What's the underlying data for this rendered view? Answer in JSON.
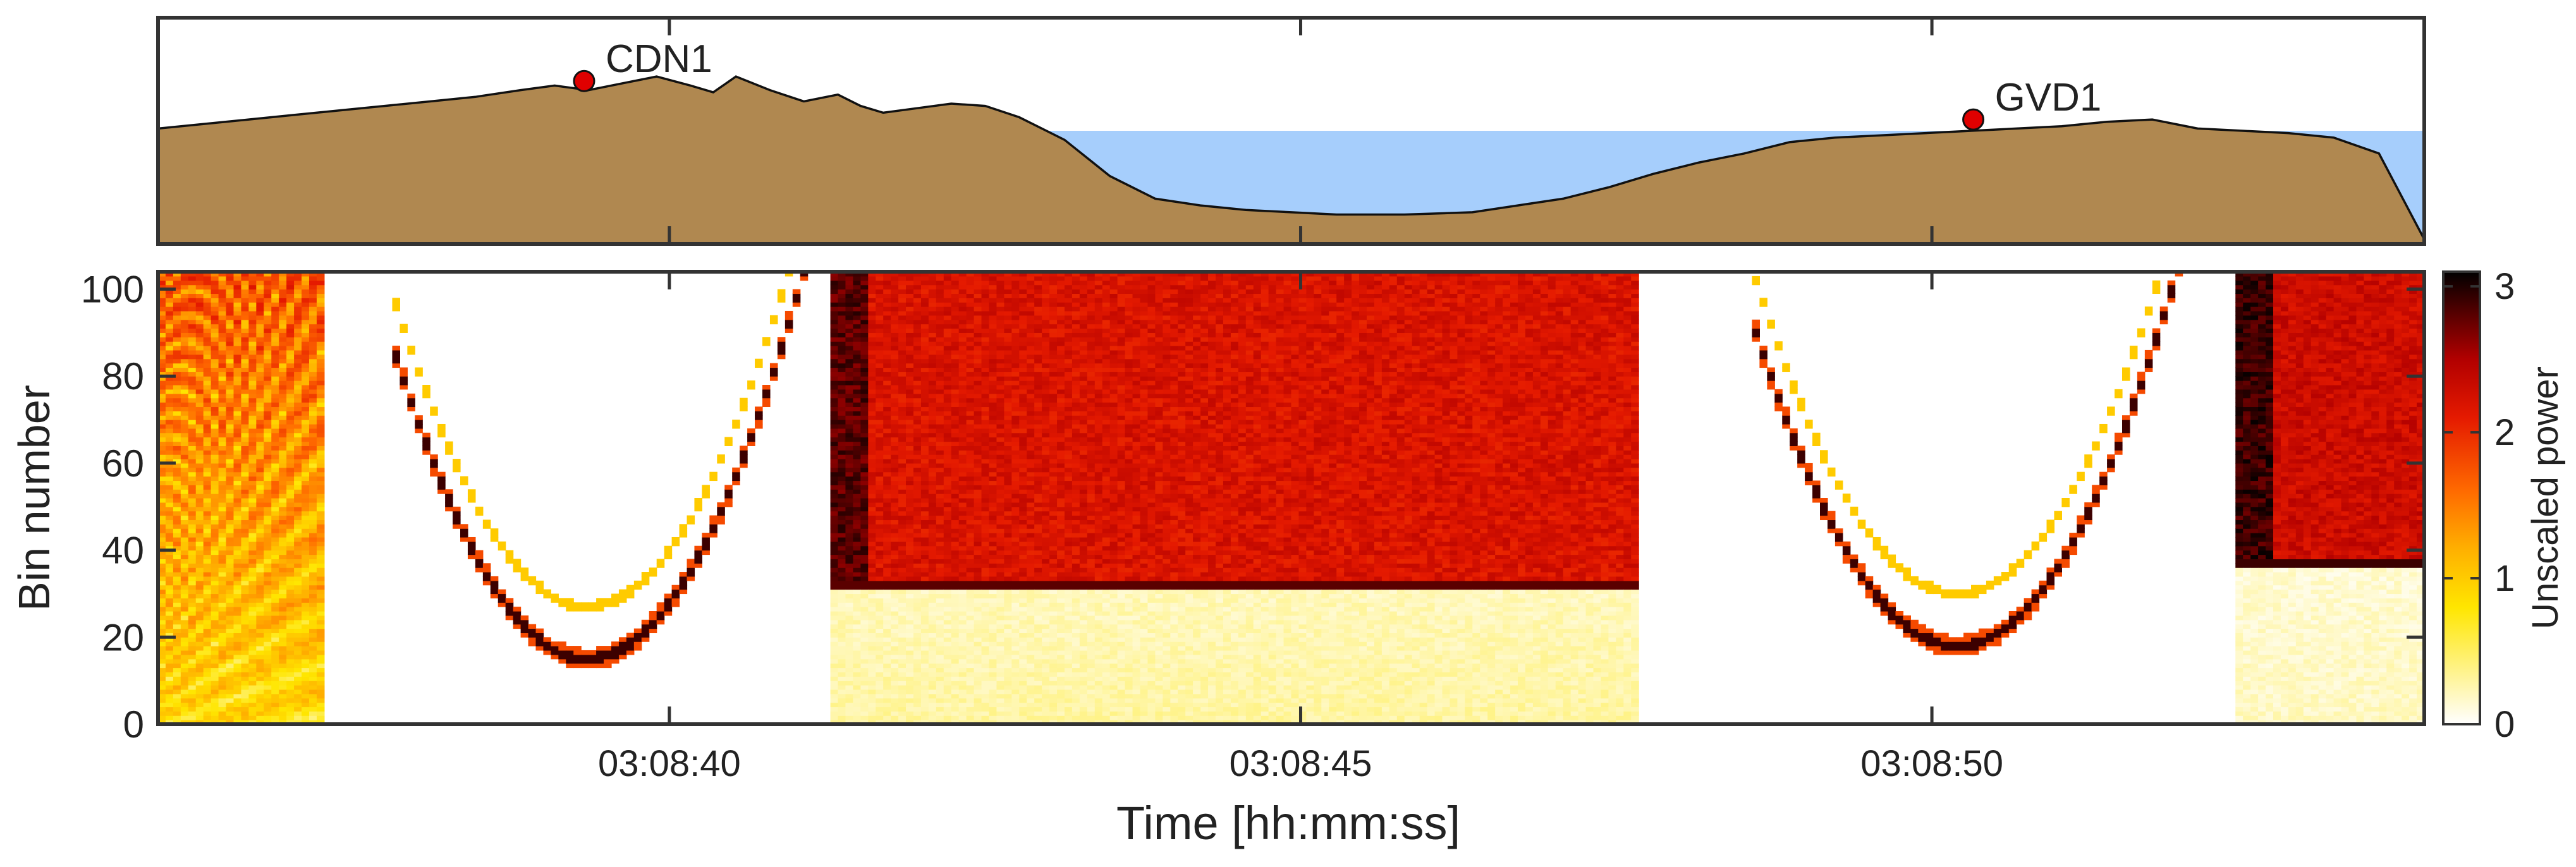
{
  "chart_data": [
    {
      "type": "area",
      "panel": "terrain-profile",
      "title": "",
      "xlabel": "",
      "ylabel": "",
      "x_range": [
        0,
        100
      ],
      "y_range": [
        0,
        100
      ],
      "colors": {
        "ground": "#b08850",
        "water": "#a6cefc",
        "outline": "#111111",
        "marker": "#e00000"
      },
      "water_level": 50,
      "ground_profile": {
        "x": [
          0,
          2,
          4,
          6,
          8,
          10,
          12,
          14,
          16,
          17.5,
          19,
          20.5,
          22,
          23.5,
          24.5,
          25.5,
          27,
          28.5,
          30,
          31,
          32,
          33.5,
          35,
          36.5,
          38,
          40,
          42,
          44,
          46,
          48,
          50,
          52,
          55,
          58,
          60,
          62,
          64,
          66,
          68,
          70,
          72,
          74,
          76,
          78,
          80,
          82,
          84,
          86,
          88,
          90,
          92,
          94,
          96,
          98,
          100
        ],
        "y": [
          51,
          53,
          55,
          57,
          59,
          61,
          63,
          65,
          68,
          70,
          68,
          71,
          74,
          70,
          67,
          74,
          68,
          63,
          66,
          61,
          58,
          60,
          62,
          61,
          56,
          46,
          30,
          20,
          17,
          15,
          14,
          13,
          13,
          14,
          17,
          20,
          25,
          31,
          36,
          40,
          45,
          47,
          48,
          49,
          50,
          51,
          52,
          54,
          55,
          51,
          50,
          49,
          47,
          40,
          2
        ]
      },
      "stations": [
        {
          "label": "CDN1",
          "x": 18.8,
          "y": 72
        },
        {
          "label": "GVD1",
          "x": 80.1,
          "y": 55
        }
      ]
    },
    {
      "type": "heatmap",
      "panel": "spectrogram",
      "title": "",
      "xlabel": "Time [hh:mm:ss]",
      "ylabel": "Bin number",
      "x_range_seconds": [
        35.95,
        53.9
      ],
      "xticks": [
        {
          "value": 40,
          "label": "03:08:40"
        },
        {
          "value": 45,
          "label": "03:08:45"
        },
        {
          "value": 50,
          "label": "03:08:50"
        }
      ],
      "ylim": [
        0,
        104
      ],
      "yticks": [
        0,
        20,
        40,
        60,
        80,
        100
      ],
      "ytick_labels": [
        "0",
        "20",
        "40",
        "60",
        "80",
        "100"
      ],
      "colorbar": {
        "label": "Unscaled power",
        "range": [
          0,
          3.1
        ],
        "ticks": [
          0,
          1,
          2,
          3
        ],
        "tick_labels": [
          "0",
          "1",
          "2",
          "3"
        ],
        "colormap_stops": [
          {
            "value": 0.0,
            "color": "#ffffff"
          },
          {
            "value": 0.2,
            "color": "#fff8c0"
          },
          {
            "value": 0.8,
            "color": "#ffe600"
          },
          {
            "value": 1.2,
            "color": "#ffb000"
          },
          {
            "value": 1.6,
            "color": "#ff6a00"
          },
          {
            "value": 2.1,
            "color": "#e51a00"
          },
          {
            "value": 2.5,
            "color": "#b20000"
          },
          {
            "value": 2.8,
            "color": "#5a0000"
          },
          {
            "value": 3.1,
            "color": "#000000"
          }
        ]
      },
      "regions": [
        {
          "name": "early-mixed",
          "t": [
            35.95,
            37.25
          ],
          "pattern": "fan",
          "level": 1.7
        },
        {
          "name": "first-arc",
          "t": [
            37.8,
            41.15
          ],
          "pattern": "parabola",
          "vertex_time": 39.35,
          "vertex_bin": 15,
          "level": 2.9
        },
        {
          "name": "first-block",
          "t": [
            41.3,
            47.7
          ],
          "pattern": "two-layer",
          "boundary_bin": 32,
          "upper_level": 2.2,
          "lower_level": 0.3
        },
        {
          "name": "second-arc",
          "t": [
            48.6,
            52.0
          ],
          "pattern": "parabola",
          "vertex_time": 50.2,
          "vertex_bin": 18,
          "level": 2.9
        },
        {
          "name": "second-block",
          "t": [
            52.4,
            53.9
          ],
          "pattern": "two-layer",
          "boundary_bin": 37,
          "upper_level": 2.3,
          "lower_level": 0.2
        }
      ]
    }
  ]
}
